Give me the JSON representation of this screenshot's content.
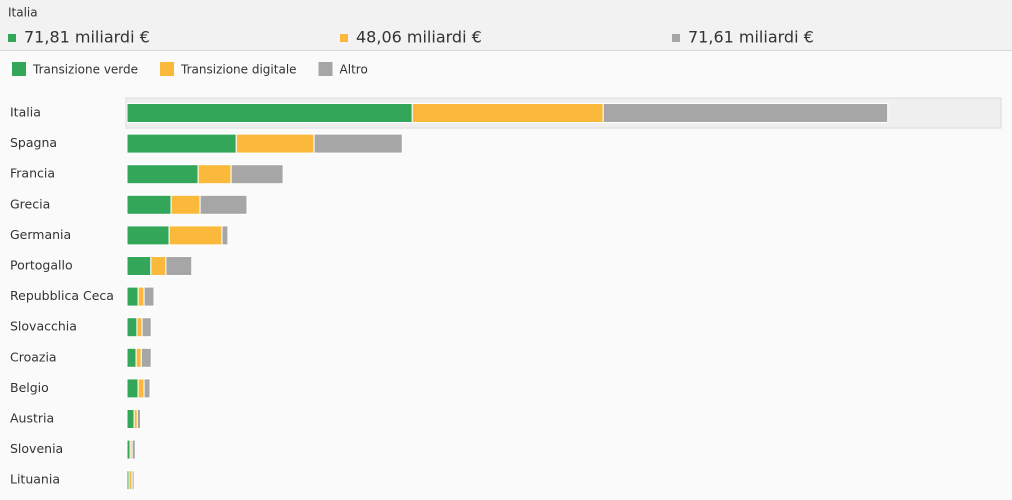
{
  "chart_data": {
    "type": "stacked-bar-horizontal",
    "header": {
      "title": "Italia",
      "values": [
        71.81,
        48.06,
        71.61
      ],
      "value_labels": [
        "71,81 miliardi €",
        "48,06 miliardi €",
        "71,61 miliardi €"
      ]
    },
    "categories": [
      "Italia",
      "Spagna",
      "Francia",
      "Grecia",
      "Germania",
      "Portogallo",
      "Repubblica Ceca",
      "Slovacchia",
      "Croazia",
      "Belgio",
      "Austria",
      "Slovenia",
      "Lituania"
    ],
    "series": [
      {
        "name": "Transizione verde",
        "color": "#34a65a",
        "values": [
          71.81,
          27.5,
          17.9,
          11.1,
          10.6,
          6.0,
          2.8,
          2.5,
          2.3,
          2.8,
          1.8,
          0.8,
          0.5
        ]
      },
      {
        "name": "Transizione digitale",
        "color": "#fbb93b",
        "values": [
          48.06,
          19.6,
          8.3,
          7.3,
          13.3,
          3.8,
          1.5,
          1.3,
          1.3,
          1.5,
          0.8,
          0.5,
          0.8
        ]
      },
      {
        "name": "Altro",
        "color": "#a6a6a6",
        "values": [
          71.61,
          22.2,
          13.1,
          11.8,
          1.5,
          6.5,
          2.5,
          2.3,
          2.5,
          1.5,
          0.8,
          0.8,
          0.5
        ]
      }
    ],
    "xlim": [
      0,
      220
    ]
  }
}
